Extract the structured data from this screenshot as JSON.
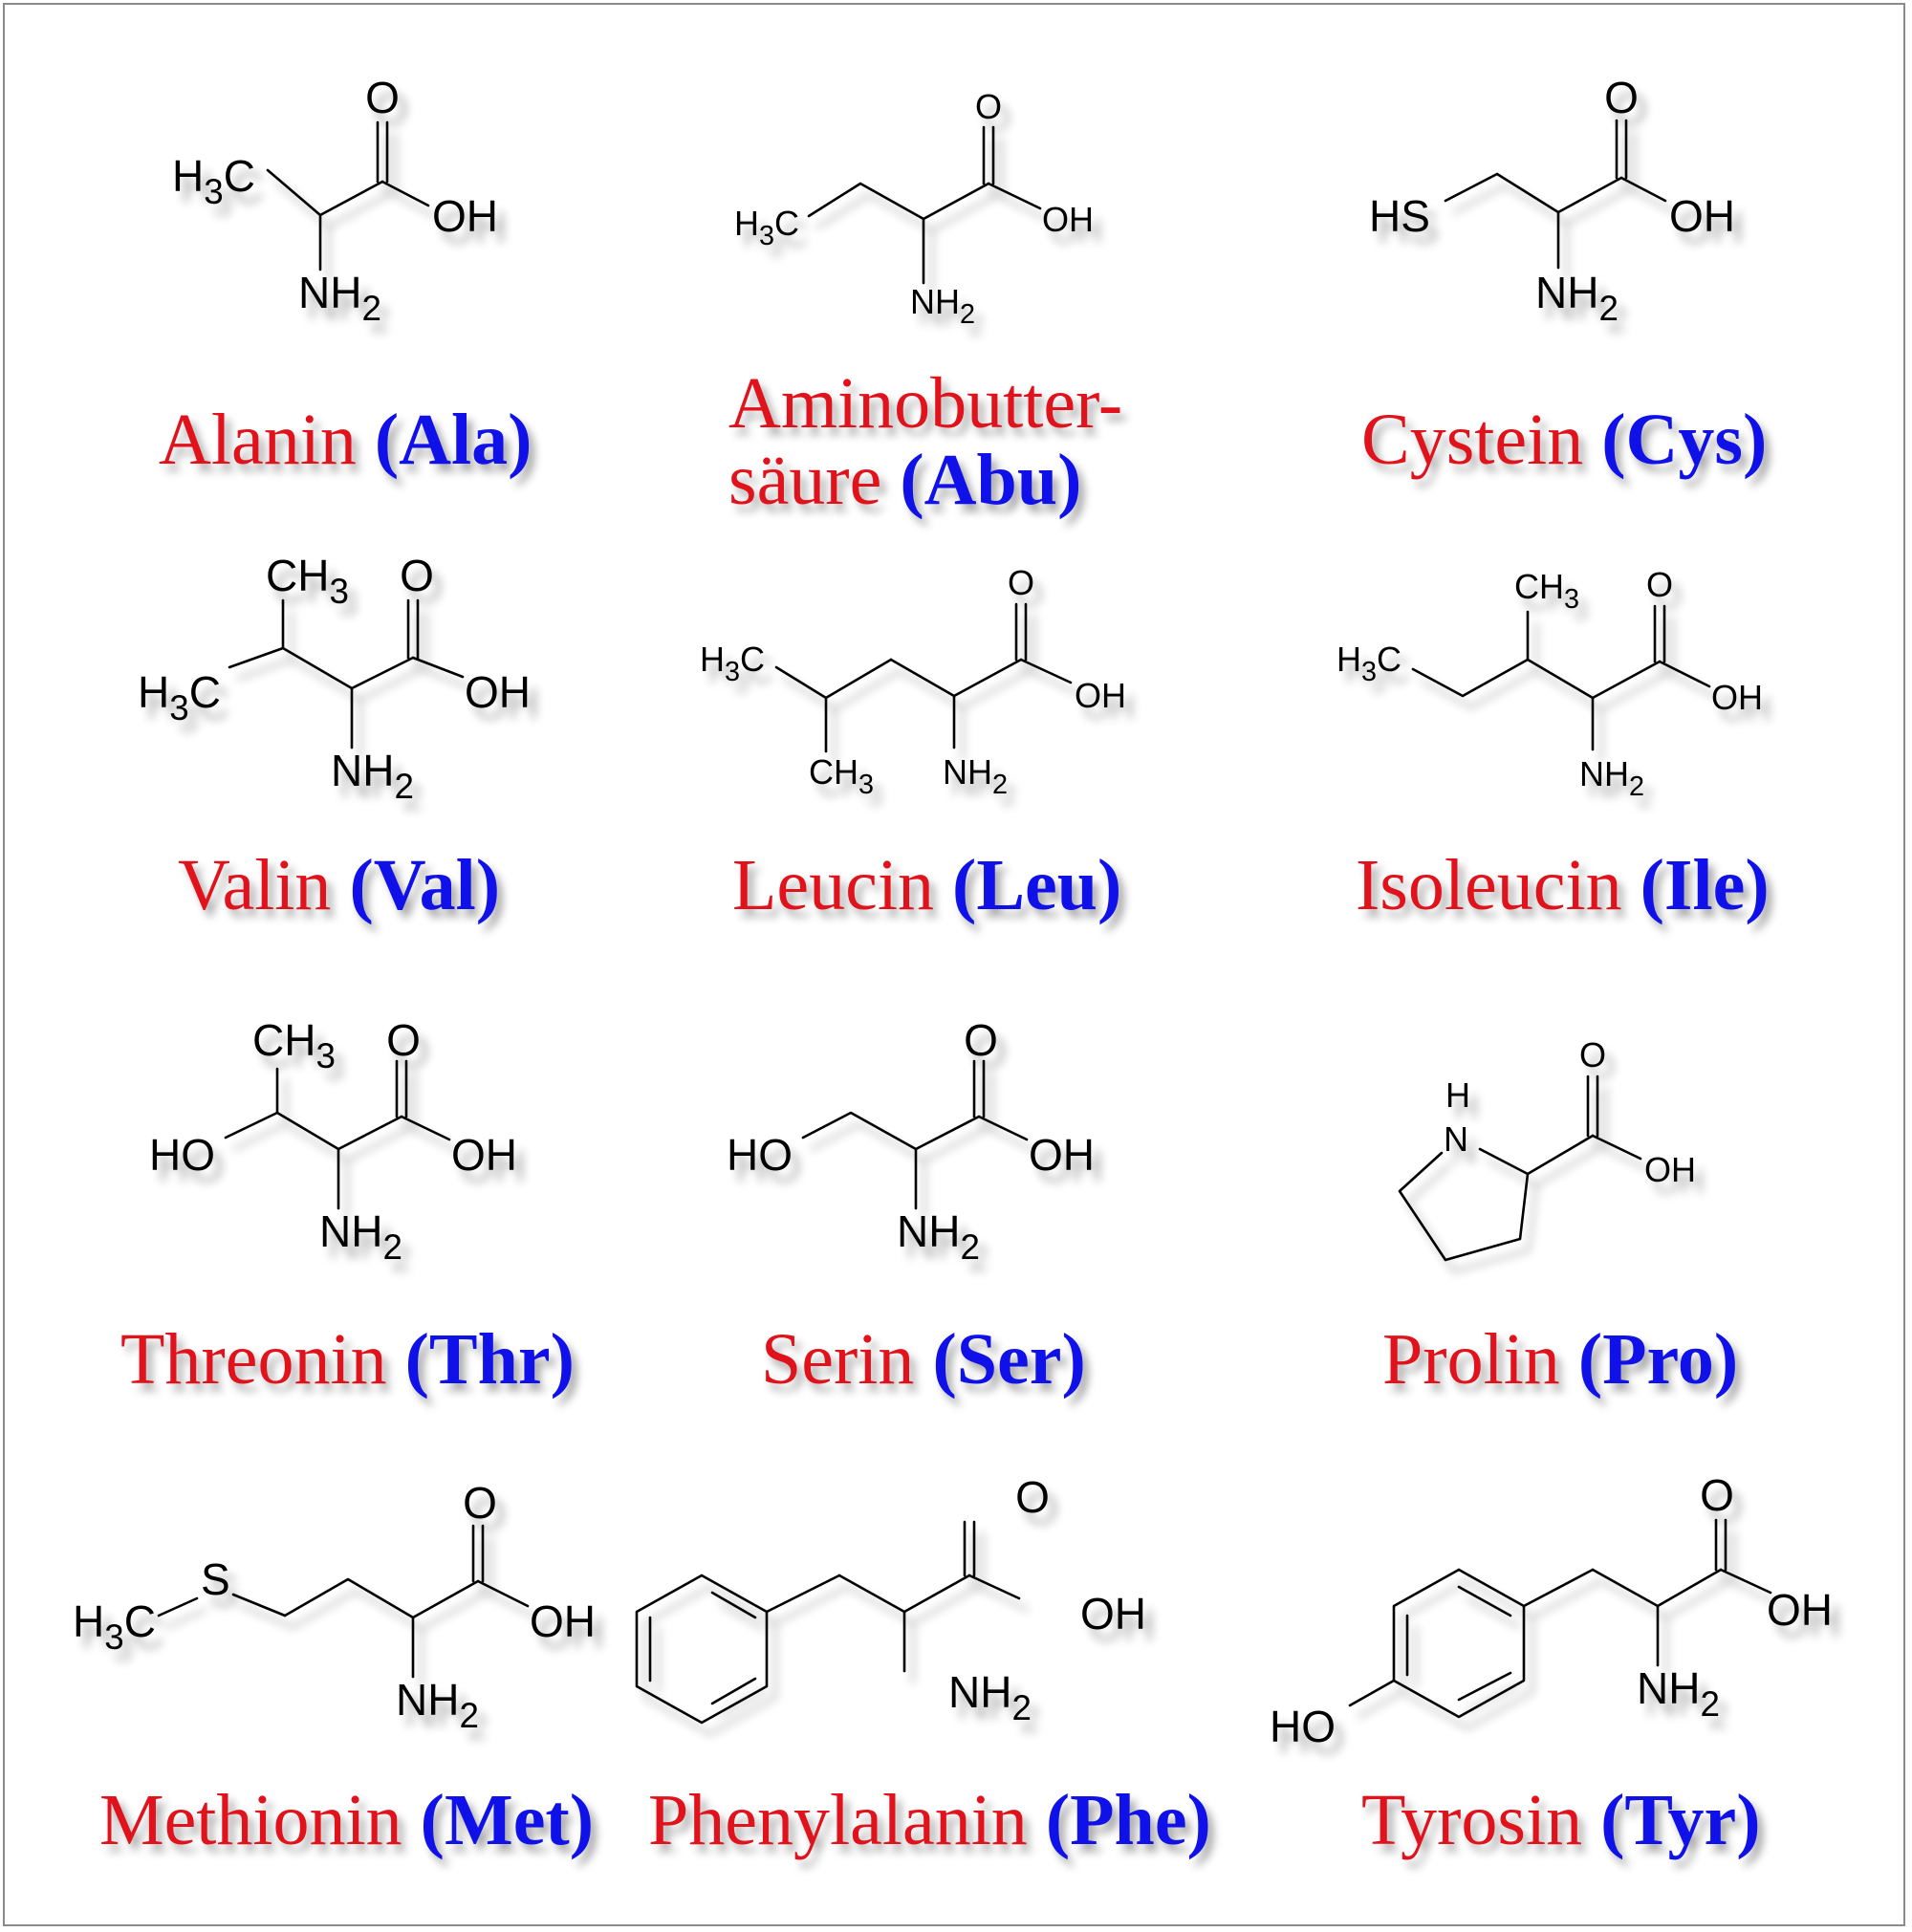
{
  "colors": {
    "name": "#e0121c",
    "abbreviation": "#1010e8",
    "bonds": "#000000"
  },
  "amino_acids": [
    {
      "name": "Alanin",
      "abbr": "(Ala)",
      "labels": {
        "o": "O",
        "oh": "OH",
        "nh2": "NH2",
        "ch3": "H3C"
      }
    },
    {
      "name_line1": "Aminobutter-",
      "name_line2": "säure",
      "abbr": "(Abu)",
      "labels": {
        "o": "O",
        "oh": "OH",
        "nh2": "NH2",
        "ch3": "H3C"
      }
    },
    {
      "name": "Cystein",
      "abbr": "(Cys)",
      "labels": {
        "o": "O",
        "oh": "OH",
        "nh2": "NH2",
        "hs": "HS"
      }
    },
    {
      "name": "Valin",
      "abbr": "(Val)",
      "labels": {
        "o": "O",
        "oh": "OH",
        "nh2": "NH2",
        "ch3_top": "CH3",
        "ch3_left": "H3C"
      }
    },
    {
      "name": "Leucin",
      "abbr": "(Leu)",
      "labels": {
        "o": "O",
        "oh": "OH",
        "nh2": "NH2",
        "ch3_left": "H3C",
        "ch3_bottom": "CH3"
      }
    },
    {
      "name": "Isoleucin",
      "abbr": "(Ile)",
      "labels": {
        "o": "O",
        "oh": "OH",
        "nh2": "NH2",
        "ch3_top": "CH3",
        "ch3_left": "H3C"
      }
    },
    {
      "name": "Threonin",
      "abbr": "(Thr)",
      "labels": {
        "o": "O",
        "oh": "OH",
        "nh2": "NH2",
        "ch3_top": "CH3",
        "ho": "HO"
      }
    },
    {
      "name": "Serin",
      "abbr": "(Ser)",
      "labels": {
        "o": "O",
        "oh": "OH",
        "nh2": "NH2",
        "ho": "HO"
      }
    },
    {
      "name": "Prolin",
      "abbr": "(Pro)",
      "labels": {
        "o": "O",
        "oh": "OH",
        "n": "N",
        "h": "H"
      }
    },
    {
      "name": "Methionin",
      "abbr": "(Met)",
      "labels": {
        "o": "O",
        "oh": "OH",
        "nh2": "NH2",
        "s": "S",
        "ch3": "H3C"
      }
    },
    {
      "name": "Phenylalanin",
      "abbr": "(Phe)",
      "labels": {
        "o": "O",
        "oh": "OH",
        "nh2": "NH2"
      }
    },
    {
      "name": "Tyrosin",
      "abbr": "(Tyr)",
      "labels": {
        "o": "O",
        "oh": "OH",
        "nh2": "NH2",
        "ho": "HO"
      }
    }
  ]
}
